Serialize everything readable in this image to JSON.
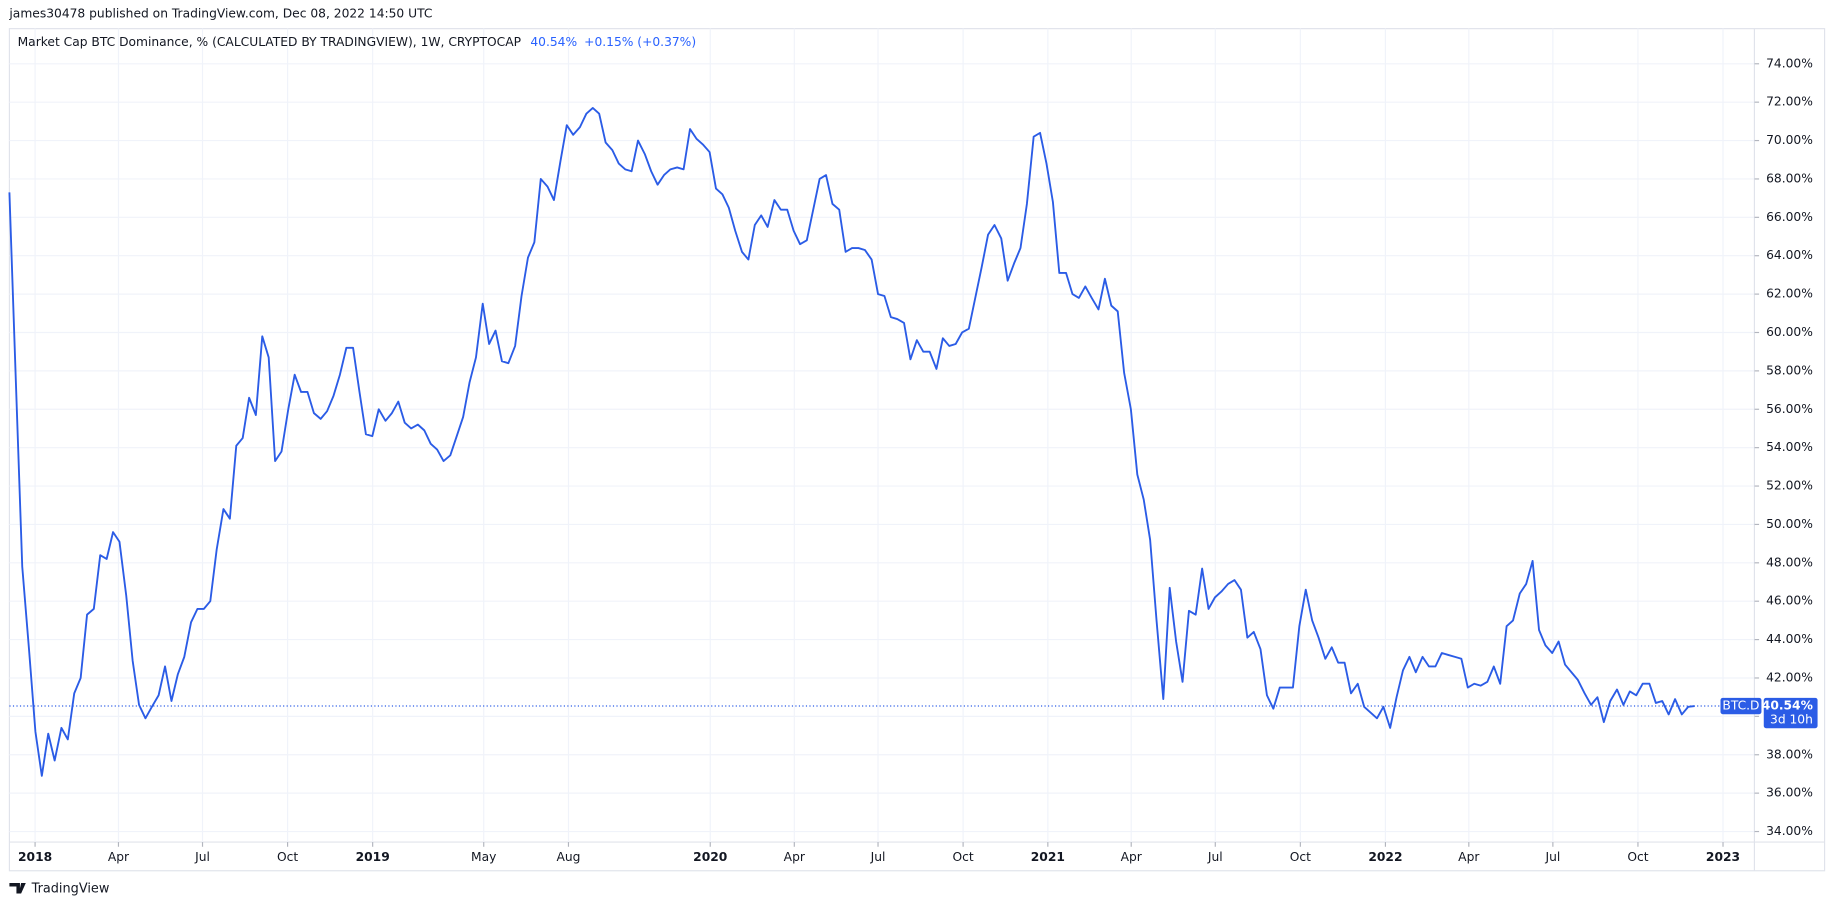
{
  "header": {
    "published": "james30478 published on TradingView.com, Dec 08, 2022 14:50 UTC",
    "brand": "TradingView"
  },
  "chart_data": {
    "type": "line",
    "legend_title": "Market Cap BTC Dominance, % (CALCULATED BY TRADINGVIEW), 1W, CRYPTOCAP",
    "last_text": "40.54%",
    "change_text": "+0.15% (+0.37%)",
    "price_tag": {
      "symbol": "BTC.D",
      "value": "40.54%",
      "countdown": "3d 10h"
    },
    "grid": true,
    "xlim": [
      2017.924,
      2023.093
    ],
    "ylim": [
      33.45,
      75.83
    ],
    "yticks": [
      {
        "value": 34,
        "label": "34.00%"
      },
      {
        "value": 36,
        "label": "36.00%"
      },
      {
        "value": 38,
        "label": "38.00%"
      },
      {
        "value": 40,
        "label": "40.00%"
      },
      {
        "value": 42,
        "label": "42.00%"
      },
      {
        "value": 44,
        "label": "44.00%"
      },
      {
        "value": 46,
        "label": "46.00%"
      },
      {
        "value": 48,
        "label": "48.00%"
      },
      {
        "value": 50,
        "label": "50.00%"
      },
      {
        "value": 52,
        "label": "52.00%"
      },
      {
        "value": 54,
        "label": "54.00%"
      },
      {
        "value": 56,
        "label": "56.00%"
      },
      {
        "value": 58,
        "label": "58.00%"
      },
      {
        "value": 60,
        "label": "60.00%"
      },
      {
        "value": 62,
        "label": "62.00%"
      },
      {
        "value": 64,
        "label": "64.00%"
      },
      {
        "value": 66,
        "label": "66.00%"
      },
      {
        "value": 68,
        "label": "68.00%"
      },
      {
        "value": 70,
        "label": "70.00%"
      },
      {
        "value": 72,
        "label": "72.00%"
      },
      {
        "value": 74,
        "label": "74.00%"
      }
    ],
    "xticks": [
      2018,
      {
        "value": 2018.247,
        "label": "Apr"
      },
      {
        "value": 2018.496,
        "label": "Jul"
      },
      {
        "value": 2018.748,
        "label": "Oct"
      },
      2019,
      {
        "value": 2019.329,
        "label": "May"
      },
      {
        "value": 2019.58,
        "label": "Aug"
      },
      2020,
      {
        "value": 2020.249,
        "label": "Apr"
      },
      {
        "value": 2020.497,
        "label": "Jul"
      },
      {
        "value": 2020.749,
        "label": "Oct"
      },
      2021,
      {
        "value": 2021.247,
        "label": "Apr"
      },
      {
        "value": 2021.496,
        "label": "Jul"
      },
      {
        "value": 2021.748,
        "label": "Oct"
      },
      2022,
      {
        "value": 2022.247,
        "label": "Apr"
      },
      {
        "value": 2022.496,
        "label": "Jul"
      },
      {
        "value": 2022.748,
        "label": "Oct"
      },
      2023
    ],
    "x": [
      2017.924,
      2017.943,
      2017.962,
      2017.982,
      2018.001,
      2018.02,
      2018.039,
      2018.058,
      2018.078,
      2018.097,
      2018.116,
      2018.135,
      2018.154,
      2018.174,
      2018.193,
      2018.212,
      2018.231,
      2018.25,
      2018.27,
      2018.289,
      2018.308,
      2018.327,
      2018.346,
      2018.366,
      2018.385,
      2018.404,
      2018.423,
      2018.442,
      2018.462,
      2018.481,
      2018.5,
      2018.519,
      2018.538,
      2018.558,
      2018.577,
      2018.596,
      2018.615,
      2018.634,
      2018.654,
      2018.673,
      2018.692,
      2018.711,
      2018.73,
      2018.75,
      2018.769,
      2018.788,
      2018.807,
      2018.826,
      2018.846,
      2018.865,
      2018.884,
      2018.903,
      2018.922,
      2018.942,
      2018.961,
      2018.98,
      2018.999,
      2019.018,
      2019.038,
      2019.057,
      2019.076,
      2019.095,
      2019.114,
      2019.134,
      2019.153,
      2019.172,
      2019.191,
      2019.21,
      2019.23,
      2019.249,
      2019.268,
      2019.287,
      2019.306,
      2019.326,
      2019.345,
      2019.364,
      2019.383,
      2019.402,
      2019.422,
      2019.441,
      2019.46,
      2019.479,
      2019.498,
      2019.518,
      2019.537,
      2019.556,
      2019.575,
      2019.594,
      2019.614,
      2019.633,
      2019.652,
      2019.671,
      2019.69,
      2019.71,
      2019.729,
      2019.748,
      2019.767,
      2019.786,
      2019.806,
      2019.825,
      2019.844,
      2019.863,
      2019.882,
      2019.902,
      2019.921,
      2019.94,
      2019.959,
      2019.978,
      2019.998,
      2020.017,
      2020.036,
      2020.055,
      2020.074,
      2020.094,
      2020.113,
      2020.132,
      2020.151,
      2020.17,
      2020.19,
      2020.209,
      2020.228,
      2020.247,
      2020.266,
      2020.286,
      2020.305,
      2020.324,
      2020.343,
      2020.362,
      2020.382,
      2020.401,
      2020.42,
      2020.439,
      2020.458,
      2020.478,
      2020.497,
      2020.516,
      2020.535,
      2020.554,
      2020.574,
      2020.593,
      2020.612,
      2020.631,
      2020.65,
      2020.67,
      2020.689,
      2020.708,
      2020.727,
      2020.746,
      2020.766,
      2020.785,
      2020.804,
      2020.823,
      2020.842,
      2020.862,
      2020.881,
      2020.9,
      2020.919,
      2020.938,
      2020.958,
      2020.977,
      2020.996,
      2021.015,
      2021.034,
      2021.054,
      2021.073,
      2021.092,
      2021.111,
      2021.13,
      2021.15,
      2021.169,
      2021.188,
      2021.207,
      2021.226,
      2021.246,
      2021.265,
      2021.284,
      2021.303,
      2021.322,
      2021.342,
      2021.361,
      2021.38,
      2021.399,
      2021.418,
      2021.438,
      2021.457,
      2021.476,
      2021.495,
      2021.514,
      2021.534,
      2021.553,
      2021.572,
      2021.591,
      2021.61,
      2021.63,
      2021.649,
      2021.668,
      2021.687,
      2021.706,
      2021.726,
      2021.745,
      2021.764,
      2021.783,
      2021.802,
      2021.822,
      2021.841,
      2021.86,
      2021.879,
      2021.898,
      2021.918,
      2021.937,
      2021.956,
      2021.975,
      2021.994,
      2022.014,
      2022.033,
      2022.052,
      2022.071,
      2022.09,
      2022.11,
      2022.129,
      2022.148,
      2022.167,
      2022.186,
      2022.206,
      2022.225,
      2022.244,
      2022.263,
      2022.282,
      2022.302,
      2022.321,
      2022.34,
      2022.359,
      2022.378,
      2022.398,
      2022.417,
      2022.436,
      2022.455,
      2022.474,
      2022.494,
      2022.513,
      2022.532,
      2022.551,
      2022.57,
      2022.59,
      2022.609,
      2022.628,
      2022.647,
      2022.666,
      2022.686,
      2022.705,
      2022.724,
      2022.743,
      2022.762,
      2022.782,
      2022.801,
      2022.82,
      2022.839,
      2022.858,
      2022.878,
      2022.897,
      2022.916
    ],
    "series": [
      {
        "name": "BTC.D",
        "color": "#2b5ce6",
        "values": [
          67.3,
          57.5,
          47.8,
          43.5,
          39.2,
          36.9,
          39.1,
          37.7,
          39.4,
          38.8,
          41.2,
          42.0,
          45.3,
          45.6,
          48.4,
          48.2,
          49.6,
          49.1,
          46.3,
          42.9,
          40.6,
          39.9,
          40.5,
          41.1,
          42.6,
          40.8,
          42.2,
          43.1,
          44.9,
          45.6,
          45.6,
          46.0,
          48.7,
          50.8,
          50.3,
          54.1,
          54.5,
          56.6,
          55.7,
          59.8,
          58.7,
          53.3,
          53.8,
          56.0,
          57.8,
          56.9,
          56.9,
          55.8,
          55.5,
          55.9,
          56.7,
          57.8,
          59.2,
          59.2,
          56.9,
          54.7,
          54.6,
          56.0,
          55.4,
          55.8,
          56.4,
          55.3,
          55.0,
          55.2,
          54.9,
          54.2,
          53.9,
          53.3,
          53.6,
          54.6,
          55.6,
          57.4,
          58.7,
          61.5,
          59.4,
          60.1,
          58.5,
          58.4,
          59.3,
          61.9,
          63.9,
          64.7,
          68.0,
          67.6,
          66.9,
          68.9,
          70.8,
          70.3,
          70.7,
          71.4,
          71.7,
          71.4,
          69.9,
          69.5,
          68.8,
          68.5,
          68.4,
          70.0,
          69.3,
          68.4,
          67.7,
          68.2,
          68.5,
          68.6,
          68.5,
          70.6,
          70.1,
          69.8,
          69.4,
          67.5,
          67.2,
          66.5,
          65.3,
          64.2,
          63.8,
          65.6,
          66.1,
          65.5,
          66.9,
          66.4,
          66.4,
          65.3,
          64.6,
          64.8,
          66.4,
          68.0,
          68.2,
          66.7,
          66.4,
          64.2,
          64.4,
          64.4,
          64.3,
          63.8,
          62.0,
          61.9,
          60.8,
          60.7,
          60.5,
          58.6,
          59.6,
          59.0,
          59.0,
          58.1,
          59.7,
          59.3,
          59.4,
          60.0,
          60.2,
          61.8,
          63.4,
          65.1,
          65.6,
          64.9,
          62.7,
          63.6,
          64.4,
          66.7,
          70.2,
          70.4,
          68.8,
          66.8,
          63.1,
          63.1,
          62.0,
          61.8,
          62.4,
          61.8,
          61.2,
          62.8,
          61.4,
          61.1,
          57.9,
          56.0,
          52.6,
          51.3,
          49.2,
          45.0,
          40.9,
          46.7,
          43.9,
          41.8,
          45.5,
          45.3,
          47.7,
          45.6,
          46.2,
          46.5,
          46.9,
          47.1,
          46.6,
          44.1,
          44.4,
          43.5,
          41.1,
          40.4,
          41.5,
          41.5,
          41.5,
          44.7,
          46.6,
          45.0,
          44.1,
          43.0,
          43.6,
          42.8,
          42.8,
          41.2,
          41.7,
          40.5,
          40.2,
          39.9,
          40.5,
          39.4,
          41.0,
          42.4,
          43.1,
          42.3,
          43.1,
          42.6,
          42.6,
          43.3,
          43.2,
          43.1,
          43.0,
          41.5,
          41.7,
          41.6,
          41.8,
          42.6,
          41.7,
          44.7,
          45.0,
          46.4,
          46.9,
          48.1,
          44.5,
          43.7,
          43.3,
          43.9,
          42.7,
          42.3,
          41.9,
          41.2,
          40.6,
          41.0,
          39.7,
          40.8,
          41.4,
          40.6,
          41.3,
          41.1,
          41.7,
          41.7,
          40.7,
          40.8,
          40.1,
          40.9,
          40.1,
          40.5,
          40.54
        ]
      }
    ]
  }
}
